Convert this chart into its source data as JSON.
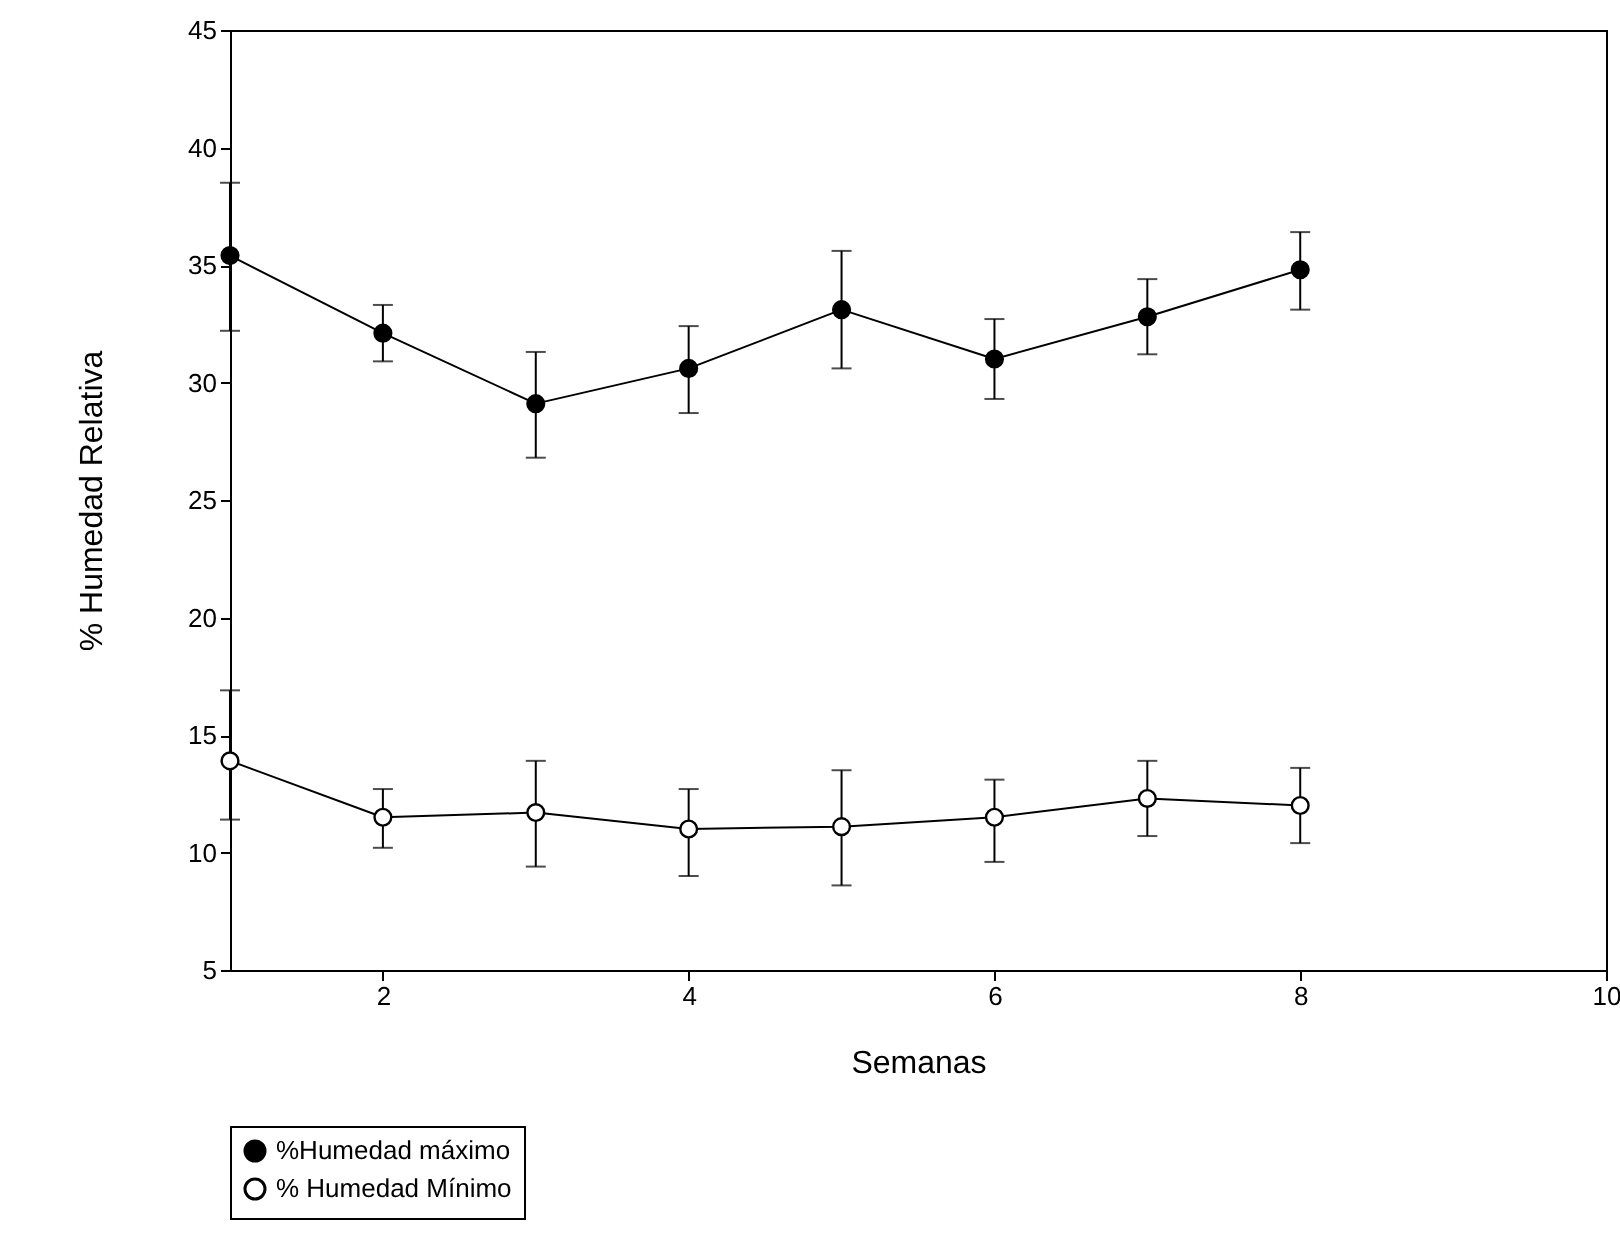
{
  "chart_data": {
    "type": "line",
    "xlabel": "Semanas",
    "ylabel": "% Humedad Relativa",
    "x": [
      1,
      2,
      3,
      4,
      5,
      6,
      7,
      8
    ],
    "series": [
      {
        "name": "%Humedad máximo",
        "color": "#000000",
        "values": [
          35.4,
          32.1,
          29.1,
          30.6,
          33.1,
          31.0,
          32.8,
          34.8
        ],
        "errors": [
          [
            32.2,
            38.5
          ],
          [
            30.9,
            33.3
          ],
          [
            26.8,
            31.3
          ],
          [
            28.7,
            32.4
          ],
          [
            30.6,
            35.6
          ],
          [
            29.3,
            32.7
          ],
          [
            31.2,
            34.4
          ],
          [
            33.1,
            36.4
          ]
        ]
      },
      {
        "name": "% Humedad Mínimo",
        "color": "#000000",
        "values": [
          13.9,
          11.5,
          11.7,
          11.0,
          11.1,
          11.5,
          12.3,
          12.0
        ],
        "errors": [
          [
            11.4,
            16.9
          ],
          [
            10.2,
            12.7
          ],
          [
            9.4,
            13.9
          ],
          [
            9.0,
            12.7
          ],
          [
            8.6,
            13.5
          ],
          [
            9.6,
            13.1
          ],
          [
            10.7,
            13.9
          ],
          [
            10.4,
            13.6
          ]
        ]
      }
    ],
    "xlim": [
      1,
      10
    ],
    "xticks": [
      2,
      4,
      6,
      8,
      10
    ],
    "ylim": [
      5,
      45
    ],
    "yticks": [
      5,
      10,
      15,
      20,
      25,
      30,
      35,
      40,
      45
    ],
    "grid": false,
    "legend": "bottom left",
    "marker": "circle",
    "line_style": "solid"
  }
}
